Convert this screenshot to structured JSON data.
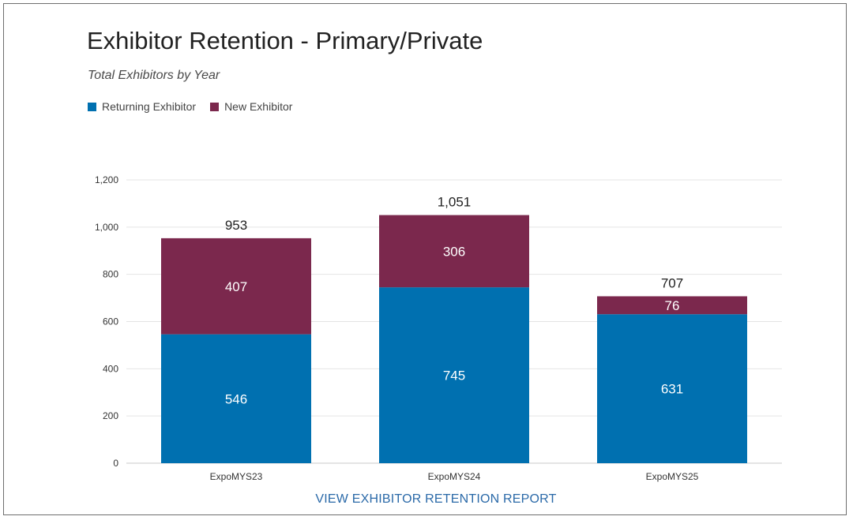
{
  "chart_data": {
    "type": "bar",
    "stacked": true,
    "title": "Exhibitor Retention - Primary/Private",
    "subtitle": "Total Exhibitors by Year",
    "categories": [
      "ExpoMYS23",
      "ExpoMYS24",
      "ExpoMYS25"
    ],
    "series": [
      {
        "name": "Returning Exhibitor",
        "values": [
          546,
          745,
          631
        ],
        "color": "#0070b0"
      },
      {
        "name": "New Exhibitor",
        "values": [
          407,
          306,
          76
        ],
        "color": "#7b284d"
      }
    ],
    "totals": [
      "953",
      "1,051",
      "707"
    ],
    "yticks": [
      0,
      200,
      400,
      600,
      800,
      1000,
      1200
    ],
    "ytick_labels": [
      "0",
      "200",
      "400",
      "600",
      "800",
      "1,000",
      "1,200"
    ],
    "ylim": [
      0,
      1200
    ],
    "grid": true,
    "legend_position": "top-left",
    "xlabel": "",
    "ylabel": ""
  },
  "footer": {
    "link_label": "VIEW EXHIBITOR RETENTION REPORT"
  }
}
